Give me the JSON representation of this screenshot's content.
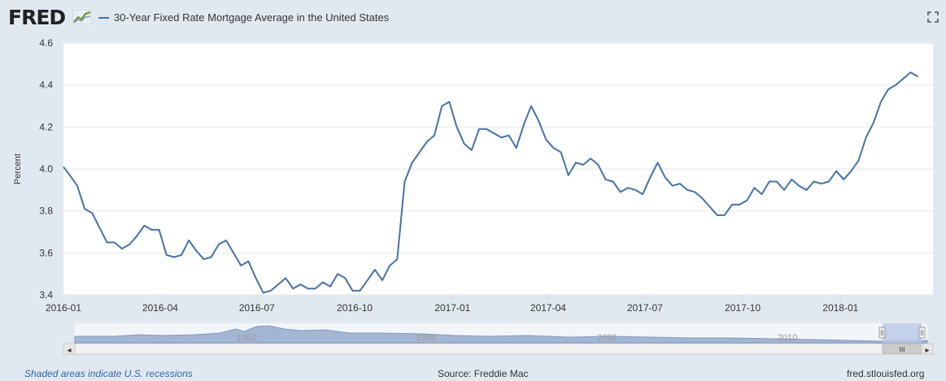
{
  "header": {
    "logo_text": "FRED",
    "title": "30-Year Fixed Rate Mortgage Average in the United States",
    "icons": [
      "fred-graph-icon",
      "fullscreen-icon"
    ]
  },
  "colors": {
    "series": "#4572a7",
    "plot_bg": "#ffffff",
    "page_bg": "#e1e9f0",
    "grid": "#e6e6e6",
    "navigator_fill": "#a3b6d2",
    "navigator_selection": "#b8c8e6",
    "footer_link": "#3366aa"
  },
  "chart_data": {
    "type": "line",
    "title": "30-Year Fixed Rate Mortgage Average in the United States",
    "ylabel": "Percent",
    "xlabel": "",
    "ylim": [
      3.4,
      4.6
    ],
    "yticks": [
      "3.4",
      "3.6",
      "3.8",
      "4.0",
      "4.2",
      "4.4",
      "4.6"
    ],
    "grid": true,
    "x_domain": [
      "2016-01-01",
      "2018-03-29"
    ],
    "xticks": [
      {
        "label": "2016-01",
        "date": "2016-01-01"
      },
      {
        "label": "2016-04",
        "date": "2016-04-01"
      },
      {
        "label": "2016-07",
        "date": "2016-07-01"
      },
      {
        "label": "2016-10",
        "date": "2016-10-01"
      },
      {
        "label": "2017-01",
        "date": "2017-01-01"
      },
      {
        "label": "2017-04",
        "date": "2017-04-01"
      },
      {
        "label": "2017-07",
        "date": "2017-07-01"
      },
      {
        "label": "2017-10",
        "date": "2017-10-01"
      },
      {
        "label": "2018-01",
        "date": "2018-01-01"
      }
    ],
    "series": [
      {
        "points": [
          [
            "2016-01-01",
            4.01
          ],
          [
            "2016-01-07",
            3.97
          ],
          [
            "2016-01-14",
            3.92
          ],
          [
            "2016-01-21",
            3.81
          ],
          [
            "2016-01-28",
            3.79
          ],
          [
            "2016-02-04",
            3.72
          ],
          [
            "2016-02-11",
            3.65
          ],
          [
            "2016-02-18",
            3.65
          ],
          [
            "2016-02-25",
            3.62
          ],
          [
            "2016-03-03",
            3.64
          ],
          [
            "2016-03-10",
            3.68
          ],
          [
            "2016-03-17",
            3.73
          ],
          [
            "2016-03-24",
            3.71
          ],
          [
            "2016-03-31",
            3.71
          ],
          [
            "2016-04-07",
            3.59
          ],
          [
            "2016-04-14",
            3.58
          ],
          [
            "2016-04-21",
            3.59
          ],
          [
            "2016-04-28",
            3.66
          ],
          [
            "2016-05-05",
            3.61
          ],
          [
            "2016-05-12",
            3.57
          ],
          [
            "2016-05-19",
            3.58
          ],
          [
            "2016-05-26",
            3.64
          ],
          [
            "2016-06-02",
            3.66
          ],
          [
            "2016-06-09",
            3.6
          ],
          [
            "2016-06-16",
            3.54
          ],
          [
            "2016-06-23",
            3.56
          ],
          [
            "2016-06-30",
            3.48
          ],
          [
            "2016-07-07",
            3.41
          ],
          [
            "2016-07-14",
            3.42
          ],
          [
            "2016-07-21",
            3.45
          ],
          [
            "2016-07-28",
            3.48
          ],
          [
            "2016-08-04",
            3.43
          ],
          [
            "2016-08-11",
            3.45
          ],
          [
            "2016-08-18",
            3.43
          ],
          [
            "2016-08-25",
            3.43
          ],
          [
            "2016-09-01",
            3.46
          ],
          [
            "2016-09-08",
            3.44
          ],
          [
            "2016-09-15",
            3.5
          ],
          [
            "2016-09-22",
            3.48
          ],
          [
            "2016-09-29",
            3.42
          ],
          [
            "2016-10-06",
            3.42
          ],
          [
            "2016-10-13",
            3.47
          ],
          [
            "2016-10-20",
            3.52
          ],
          [
            "2016-10-27",
            3.47
          ],
          [
            "2016-11-03",
            3.54
          ],
          [
            "2016-11-10",
            3.57
          ],
          [
            "2016-11-17",
            3.94
          ],
          [
            "2016-11-24",
            4.03
          ],
          [
            "2016-12-01",
            4.08
          ],
          [
            "2016-12-08",
            4.13
          ],
          [
            "2016-12-15",
            4.16
          ],
          [
            "2016-12-22",
            4.3
          ],
          [
            "2016-12-29",
            4.32
          ],
          [
            "2017-01-05",
            4.2
          ],
          [
            "2017-01-12",
            4.12
          ],
          [
            "2017-01-19",
            4.09
          ],
          [
            "2017-01-26",
            4.19
          ],
          [
            "2017-02-02",
            4.19
          ],
          [
            "2017-02-09",
            4.17
          ],
          [
            "2017-02-16",
            4.15
          ],
          [
            "2017-02-23",
            4.16
          ],
          [
            "2017-03-02",
            4.1
          ],
          [
            "2017-03-09",
            4.21
          ],
          [
            "2017-03-16",
            4.3
          ],
          [
            "2017-03-23",
            4.23
          ],
          [
            "2017-03-30",
            4.14
          ],
          [
            "2017-04-06",
            4.1
          ],
          [
            "2017-04-13",
            4.08
          ],
          [
            "2017-04-20",
            3.97
          ],
          [
            "2017-04-27",
            4.03
          ],
          [
            "2017-05-04",
            4.02
          ],
          [
            "2017-05-11",
            4.05
          ],
          [
            "2017-05-18",
            4.02
          ],
          [
            "2017-05-25",
            3.95
          ],
          [
            "2017-06-01",
            3.94
          ],
          [
            "2017-06-08",
            3.89
          ],
          [
            "2017-06-15",
            3.91
          ],
          [
            "2017-06-22",
            3.9
          ],
          [
            "2017-06-29",
            3.88
          ],
          [
            "2017-07-06",
            3.96
          ],
          [
            "2017-07-13",
            4.03
          ],
          [
            "2017-07-20",
            3.96
          ],
          [
            "2017-07-27",
            3.92
          ],
          [
            "2017-08-03",
            3.93
          ],
          [
            "2017-08-10",
            3.9
          ],
          [
            "2017-08-17",
            3.89
          ],
          [
            "2017-08-24",
            3.86
          ],
          [
            "2017-08-31",
            3.82
          ],
          [
            "2017-09-07",
            3.78
          ],
          [
            "2017-09-14",
            3.78
          ],
          [
            "2017-09-21",
            3.83
          ],
          [
            "2017-09-28",
            3.83
          ],
          [
            "2017-10-05",
            3.85
          ],
          [
            "2017-10-12",
            3.91
          ],
          [
            "2017-10-19",
            3.88
          ],
          [
            "2017-10-26",
            3.94
          ],
          [
            "2017-11-02",
            3.94
          ],
          [
            "2017-11-09",
            3.9
          ],
          [
            "2017-11-16",
            3.95
          ],
          [
            "2017-11-23",
            3.92
          ],
          [
            "2017-11-30",
            3.9
          ],
          [
            "2017-12-07",
            3.94
          ],
          [
            "2017-12-14",
            3.93
          ],
          [
            "2017-12-21",
            3.94
          ],
          [
            "2017-12-28",
            3.99
          ],
          [
            "2018-01-04",
            3.95
          ],
          [
            "2018-01-11",
            3.99
          ],
          [
            "2018-01-18",
            4.04
          ],
          [
            "2018-01-25",
            4.15
          ],
          [
            "2018-02-01",
            4.22
          ],
          [
            "2018-02-08",
            4.32
          ],
          [
            "2018-02-15",
            4.38
          ],
          [
            "2018-02-22",
            4.4
          ],
          [
            "2018-03-01",
            4.43
          ],
          [
            "2018-03-08",
            4.46
          ],
          [
            "2018-03-15",
            4.44
          ]
        ]
      }
    ]
  },
  "navigator": {
    "labels": [
      "1980",
      "1990",
      "2000",
      "2010"
    ],
    "left_arrow": "◂",
    "right_arrow": "▸",
    "grip": "III"
  },
  "footer": {
    "recession_note": "Shaded areas indicate U.S. recessions",
    "source": "Source: Freddie Mac",
    "site": "fred.stlouisfed.org"
  }
}
